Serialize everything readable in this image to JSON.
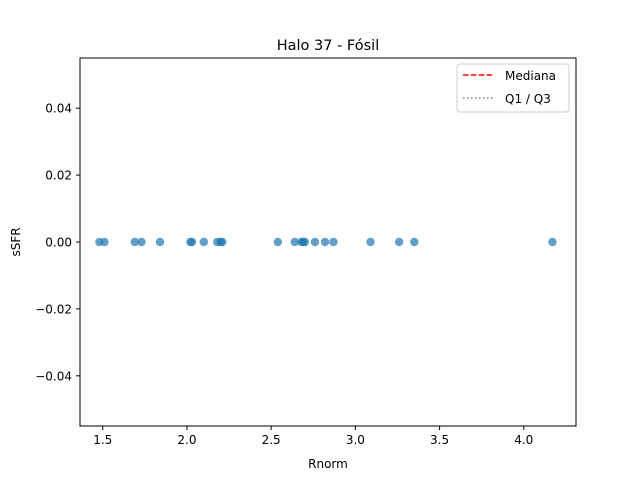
{
  "chart_data": {
    "type": "scatter",
    "title": "Halo 37 - Fósil",
    "xlabel": "Rnorm",
    "ylabel": "sSFR",
    "xlim": [
      1.365,
      4.31
    ],
    "ylim": [
      -0.055,
      0.055
    ],
    "xticks": [
      1.5,
      2.0,
      2.5,
      3.0,
      3.5,
      4.0
    ],
    "xtick_labels": [
      "1.5",
      "2.0",
      "2.5",
      "3.0",
      "3.5",
      "4.0"
    ],
    "yticks": [
      -0.04,
      -0.02,
      0.0,
      0.02,
      0.04
    ],
    "ytick_labels": [
      "−0.04",
      "−0.02",
      "0.00",
      "0.02",
      "0.04"
    ],
    "grid": false,
    "legend_position": "top-right",
    "series": [
      {
        "color": "#1f77b4",
        "alpha": 0.7,
        "marker": "circle",
        "points": [
          {
            "x": 1.48,
            "y": 0.0
          },
          {
            "x": 1.51,
            "y": 0.0
          },
          {
            "x": 1.69,
            "y": 0.0
          },
          {
            "x": 1.73,
            "y": 0.0
          },
          {
            "x": 1.84,
            "y": 0.0
          },
          {
            "x": 2.02,
            "y": 0.0
          },
          {
            "x": 2.03,
            "y": 0.0
          },
          {
            "x": 2.1,
            "y": 0.0
          },
          {
            "x": 2.18,
            "y": 0.0
          },
          {
            "x": 2.2,
            "y": 0.0
          },
          {
            "x": 2.21,
            "y": 0.0
          },
          {
            "x": 2.54,
            "y": 0.0
          },
          {
            "x": 2.64,
            "y": 0.0
          },
          {
            "x": 2.68,
            "y": 0.0
          },
          {
            "x": 2.69,
            "y": 0.0
          },
          {
            "x": 2.7,
            "y": 0.0
          },
          {
            "x": 2.76,
            "y": 0.0
          },
          {
            "x": 2.82,
            "y": 0.0
          },
          {
            "x": 2.87,
            "y": 0.0
          },
          {
            "x": 3.09,
            "y": 0.0
          },
          {
            "x": 3.26,
            "y": 0.0
          },
          {
            "x": 3.35,
            "y": 0.0
          },
          {
            "x": 4.17,
            "y": 0.0
          }
        ]
      }
    ],
    "legend": [
      {
        "label": "Mediana",
        "color": "#ff0000",
        "style": "dashed"
      },
      {
        "label": "Q1 / Q3",
        "color": "#808080",
        "style": "dotted"
      }
    ]
  }
}
